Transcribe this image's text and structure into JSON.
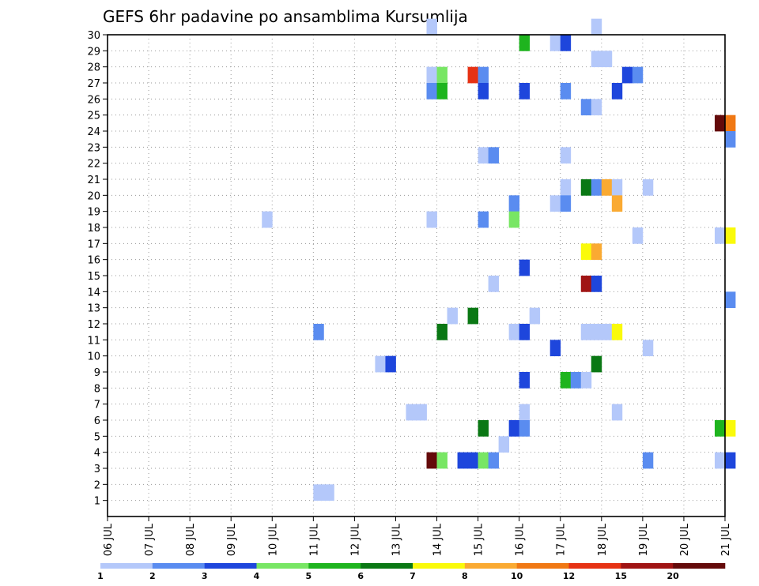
{
  "chart_data": {
    "type": "heatmap",
    "title": "GEFS 6hr padavine po ansamblima Kursumlija",
    "x_tick_labels": [
      "06 JUL",
      "07 JUL",
      "08 JUL",
      "09 JUL",
      "10 JUL",
      "11 JUL",
      "12 JUL",
      "13 JUL",
      "14 JUL",
      "15 JUL",
      "16 JUL",
      "17 JUL",
      "18 JUL",
      "19 JUL",
      "20 JUL",
      "21 JUL"
    ],
    "y_tick_labels": [
      "1",
      "2",
      "3",
      "4",
      "5",
      "6",
      "7",
      "8",
      "9",
      "10",
      "11",
      "12",
      "13",
      "14",
      "15",
      "16",
      "17",
      "18",
      "19",
      "20",
      "21",
      "22",
      "23",
      "24",
      "25",
      "26",
      "27",
      "28",
      "29",
      "30"
    ],
    "ylim": [
      0,
      30
    ],
    "grid": true,
    "legend_placement": "bottom",
    "legend": {
      "labels": [
        "1",
        "2",
        "3",
        "4",
        "5",
        "6",
        "7",
        "8",
        "10",
        "12",
        "15",
        "20"
      ],
      "colors": [
        "#b4c8fa",
        "#5a8cf0",
        "#1e46dc",
        "#78e664",
        "#1eb41e",
        "#0a7814",
        "#fafa0a",
        "#faaa32",
        "#f07814",
        "#e63214",
        "#a01414",
        "#640a0a"
      ]
    },
    "x_start": "06 JUL",
    "step_hours": 6,
    "cells": [
      [
        7.75,
        30,
        0
      ],
      [
        11.75,
        30,
        0
      ],
      [
        10,
        29,
        4
      ],
      [
        10.75,
        29,
        0
      ],
      [
        11,
        29,
        2
      ],
      [
        11.75,
        28,
        0
      ],
      [
        12,
        28,
        0
      ],
      [
        7.75,
        27,
        0
      ],
      [
        8,
        27,
        3
      ],
      [
        8.75,
        27,
        9
      ],
      [
        9,
        27,
        1
      ],
      [
        12.5,
        27,
        2
      ],
      [
        12.75,
        27,
        1
      ],
      [
        7.75,
        26,
        1
      ],
      [
        8,
        26,
        4
      ],
      [
        9,
        26,
        2
      ],
      [
        10,
        26,
        2
      ],
      [
        11,
        26,
        1
      ],
      [
        12.25,
        26,
        2
      ],
      [
        11.5,
        25,
        1
      ],
      [
        11.75,
        25,
        0
      ],
      [
        14.75,
        24,
        11
      ],
      [
        15,
        24,
        8
      ],
      [
        15,
        23,
        1
      ],
      [
        9,
        22,
        0
      ],
      [
        9.25,
        22,
        1
      ],
      [
        11,
        22,
        0
      ],
      [
        11,
        20,
        0
      ],
      [
        11.5,
        20,
        5
      ],
      [
        11.75,
        20,
        1
      ],
      [
        12,
        20,
        7
      ],
      [
        12.25,
        20,
        0
      ],
      [
        13,
        20,
        0
      ],
      [
        9.75,
        19,
        1
      ],
      [
        10.75,
        19,
        0
      ],
      [
        11,
        19,
        1
      ],
      [
        12.25,
        19,
        7
      ],
      [
        3.75,
        18,
        0
      ],
      [
        7.75,
        18,
        0
      ],
      [
        9,
        18,
        1
      ],
      [
        9.75,
        18,
        3
      ],
      [
        12.75,
        17,
        0
      ],
      [
        14.75,
        17,
        0
      ],
      [
        15,
        17,
        6
      ],
      [
        11.5,
        16,
        6
      ],
      [
        11.75,
        16,
        7
      ],
      [
        10,
        15,
        2
      ],
      [
        9.25,
        14,
        0
      ],
      [
        11.5,
        14,
        10
      ],
      [
        11.75,
        14,
        2
      ],
      [
        15,
        13,
        1
      ],
      [
        8.25,
        12,
        0
      ],
      [
        8.75,
        12,
        5
      ],
      [
        10.25,
        12,
        0
      ],
      [
        5,
        11,
        1
      ],
      [
        8,
        11,
        5
      ],
      [
        9.75,
        11,
        0
      ],
      [
        10,
        11,
        2
      ],
      [
        11.5,
        11,
        0
      ],
      [
        11.75,
        11,
        0
      ],
      [
        12,
        11,
        0
      ],
      [
        12.25,
        11,
        6
      ],
      [
        10.75,
        10,
        2
      ],
      [
        13,
        10,
        0
      ],
      [
        6.5,
        9,
        0
      ],
      [
        6.75,
        9,
        2
      ],
      [
        11.75,
        9,
        5
      ],
      [
        10,
        8,
        2
      ],
      [
        11,
        8,
        4
      ],
      [
        11.25,
        8,
        1
      ],
      [
        11.5,
        8,
        0
      ],
      [
        7.25,
        6,
        0
      ],
      [
        7.5,
        6,
        0
      ],
      [
        10,
        6,
        0
      ],
      [
        12.25,
        6,
        0
      ],
      [
        9,
        5,
        5
      ],
      [
        9.75,
        5,
        2
      ],
      [
        10,
        5,
        1
      ],
      [
        14.75,
        5,
        4
      ],
      [
        15,
        5,
        6
      ],
      [
        9.5,
        4,
        0
      ],
      [
        7.75,
        3,
        11
      ],
      [
        8,
        3,
        3
      ],
      [
        8.5,
        3,
        2
      ],
      [
        8.75,
        3,
        2
      ],
      [
        9,
        3,
        3
      ],
      [
        9.25,
        3,
        1
      ],
      [
        13,
        3,
        1
      ],
      [
        14.75,
        3,
        0
      ],
      [
        15,
        3,
        2
      ],
      [
        5,
        1,
        0
      ],
      [
        5.25,
        1,
        0
      ]
    ]
  }
}
